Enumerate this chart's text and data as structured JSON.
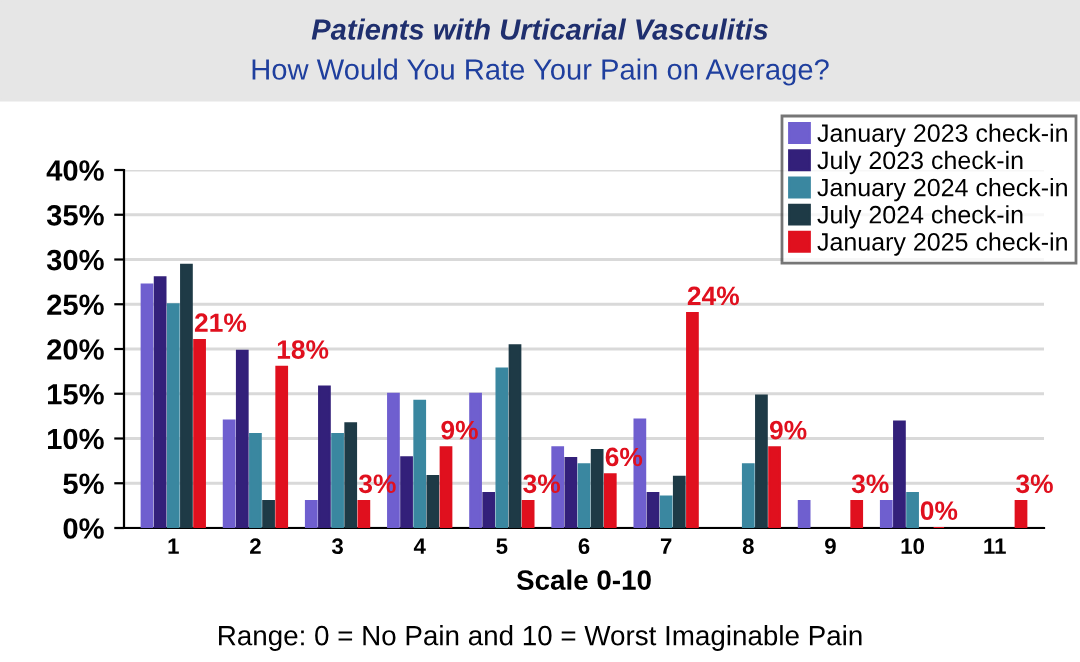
{
  "chart_data": {
    "type": "bar",
    "title": "Patients with Urticarial Vasculitis",
    "subtitle": "How Would You Rate Your Pain on Average?",
    "xlabel": "Scale 0-10",
    "annotations": [
      "Range: 0 = No Pain and 10 = Worst Imaginable Pain"
    ],
    "categories": [
      "1",
      "2",
      "3",
      "4",
      "5",
      "6",
      "7",
      "8",
      "9",
      "10",
      "11"
    ],
    "series": [
      {
        "name": "January 2023 check-in",
        "color": "#6f5fcf",
        "values": [
          27.2,
          12,
          3,
          15,
          15,
          9,
          12.1,
          null,
          3,
          3,
          null
        ]
      },
      {
        "name": "July 2023 check-in",
        "color": "#33207a",
        "values": [
          28,
          19.8,
          15.8,
          7.9,
          3.9,
          7.8,
          3.9,
          null,
          null,
          11.9,
          null
        ]
      },
      {
        "name": "January 2024 check-in",
        "color": "#3a87a0",
        "values": [
          25,
          10.5,
          10.5,
          14.2,
          17.8,
          7.1,
          3.5,
          7.1,
          null,
          3.9,
          null
        ]
      },
      {
        "name": "July 2024 check-in",
        "color": "#1e3a46",
        "values": [
          29.4,
          3,
          11.7,
          5.8,
          20.4,
          8.7,
          5.7,
          14.8,
          null,
          null,
          null
        ]
      },
      {
        "name": "January 2025 check-in",
        "color": "#e0101e",
        "values": [
          21,
          18,
          3,
          9,
          3,
          6,
          24,
          9,
          3,
          0,
          3
        ],
        "value_labels": [
          "21%",
          "18%",
          "3%",
          "9%",
          "3%",
          "6%",
          "24%",
          "9%",
          "3%",
          "0%",
          "3%"
        ]
      }
    ],
    "ylim": [
      0,
      40
    ],
    "yticks": [
      {
        "value": 0,
        "label": "0%"
      },
      {
        "value": 5,
        "label": "5%"
      },
      {
        "value": 10,
        "label": "10%"
      },
      {
        "value": 15,
        "label": "15%"
      },
      {
        "value": 20,
        "label": "20%"
      },
      {
        "value": 25,
        "label": "25%"
      },
      {
        "value": 30,
        "label": "30%"
      },
      {
        "value": 35,
        "label": "35%"
      },
      {
        "value": 40,
        "label": "40%"
      }
    ],
    "grid": "y",
    "legend": "top right"
  }
}
